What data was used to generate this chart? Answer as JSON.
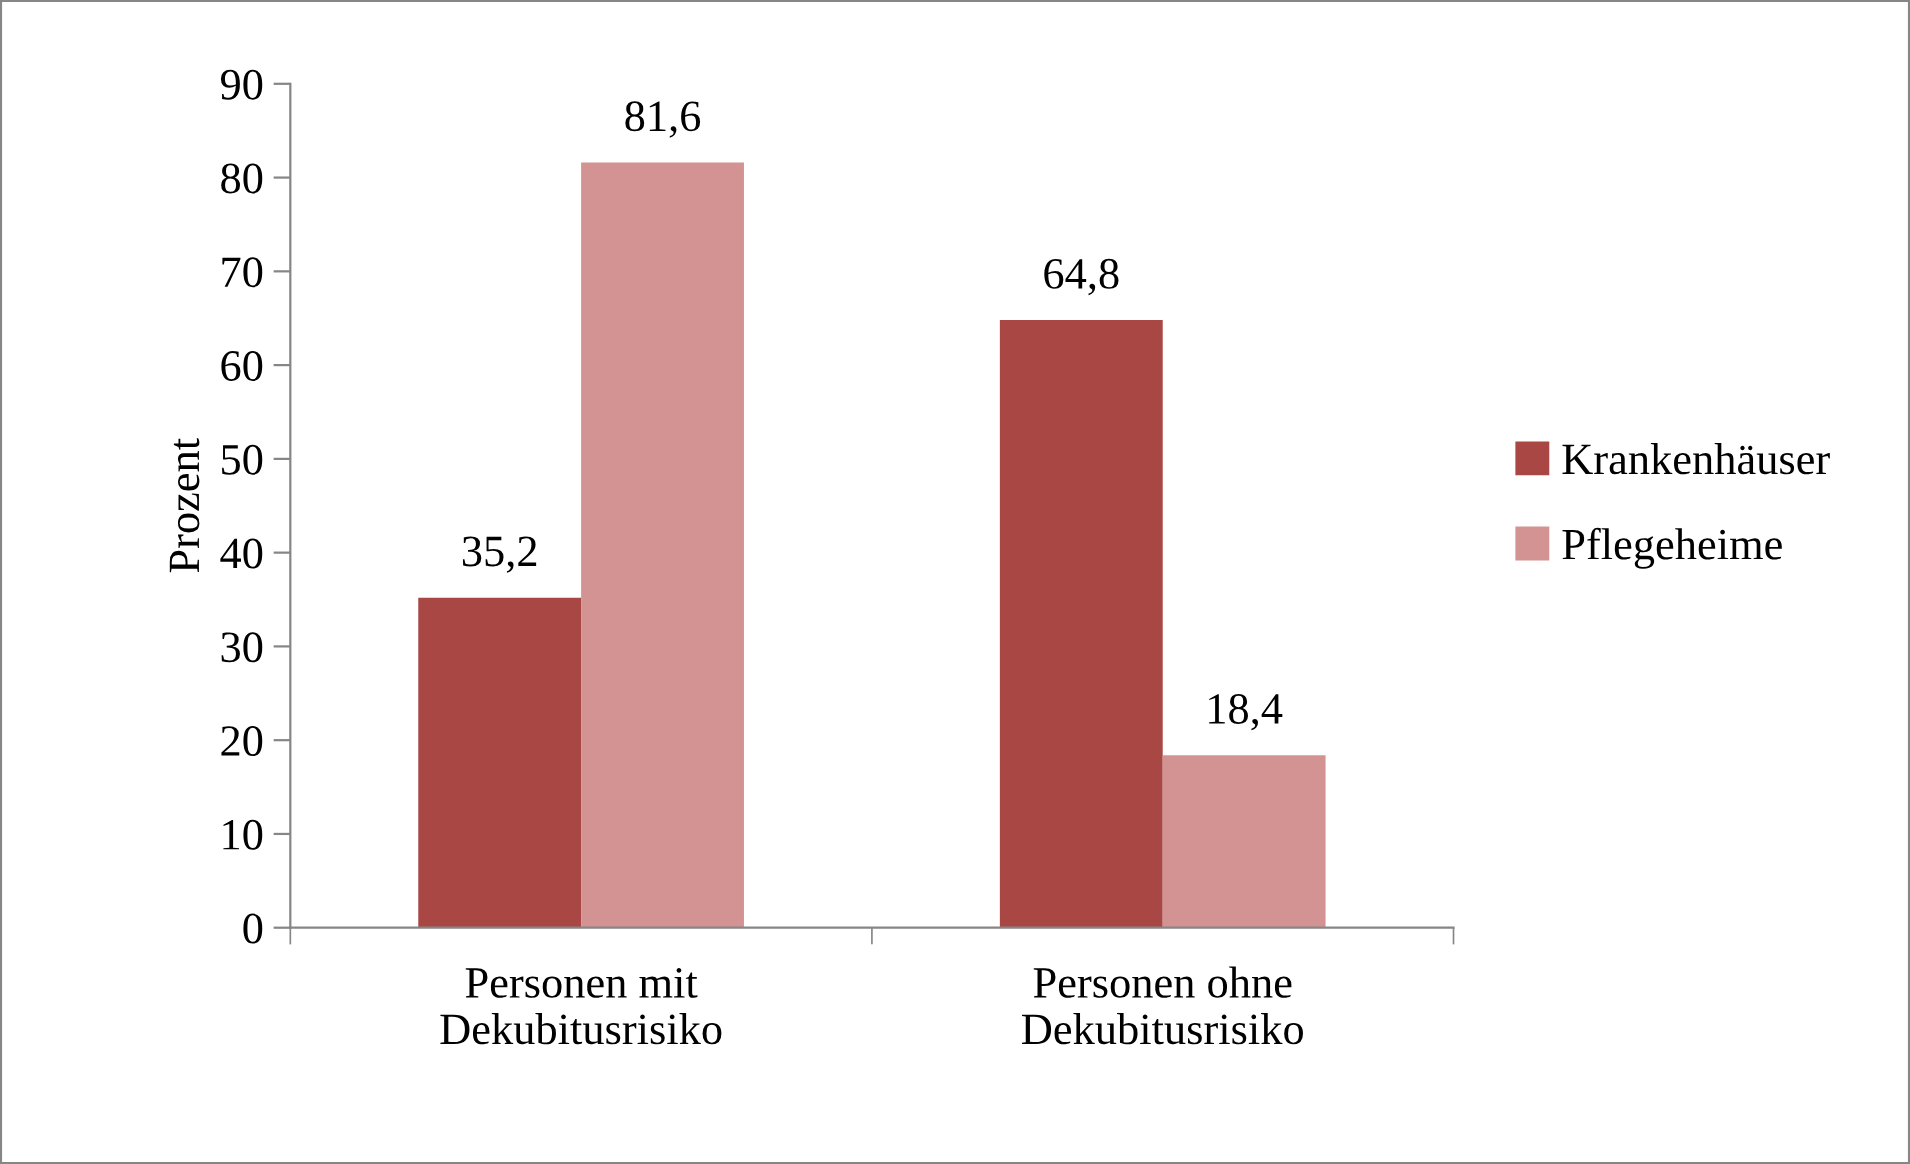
{
  "chart_data": {
    "type": "bar",
    "ylabel": "Prozent",
    "categories": [
      "Personen mit\nDekubitusrisiko",
      "Personen ohne\nDekubitusrisiko"
    ],
    "series": [
      {
        "name": "Krankenhäuser",
        "color": "#a94744",
        "values": [
          35.2,
          64.8
        ],
        "value_labels": [
          "35,2",
          "64,8"
        ]
      },
      {
        "name": "Pflegeheime",
        "color": "#d29392",
        "values": [
          81.6,
          18.4
        ],
        "value_labels": [
          "81,6",
          "18,4"
        ]
      }
    ],
    "ylim": [
      0,
      90
    ],
    "yticks": [
      0,
      10,
      20,
      30,
      40,
      50,
      60,
      70,
      80,
      90
    ],
    "grid": false,
    "legend": "right"
  }
}
